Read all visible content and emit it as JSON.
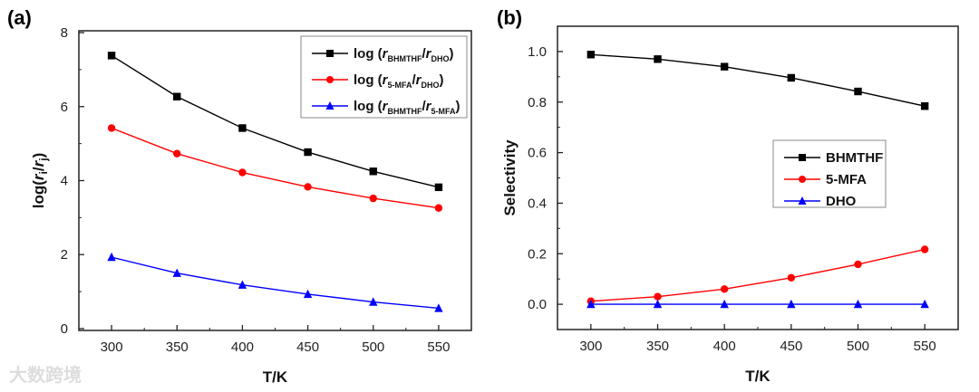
{
  "watermark": "大数跨境",
  "chart_data": [
    {
      "panel_label": "(a)",
      "type": "line",
      "xlabel": "T/K",
      "ylabel": "log(r_i/r_j)",
      "xlim": [
        275,
        575
      ],
      "ylim": [
        -0.05,
        8.05
      ],
      "xticks": [
        300,
        350,
        400,
        450,
        500,
        550
      ],
      "yticks": [
        0,
        2,
        4,
        6,
        8
      ],
      "x": [
        300,
        350,
        400,
        450,
        500,
        550
      ],
      "legend_position": "top-right",
      "series": [
        {
          "name": "log (rBHMTHF/rDHO)",
          "label_main": "log (",
          "r1": "r",
          "s1": "BHMTHF",
          "r2": "r",
          "s2": "DHO",
          "color": "#000000",
          "marker": "square",
          "values": [
            7.38,
            6.27,
            5.42,
            4.77,
            4.25,
            3.82
          ]
        },
        {
          "name": "log (r5-MFA/rDHO)",
          "label_main": "log (",
          "r1": "r",
          "s1": "5-MFA",
          "r2": "r",
          "s2": "DHO",
          "color": "#ff0000",
          "marker": "circle",
          "values": [
            5.42,
            4.73,
            4.22,
            3.83,
            3.52,
            3.26
          ]
        },
        {
          "name": "log (rBHMTHF/r5-MFA)",
          "label_main": "log (",
          "r1": "r",
          "s1": "BHMTHF",
          "r2": "r",
          "s2": "5-MFA",
          "color": "#0000ff",
          "marker": "triangle",
          "values": [
            1.93,
            1.5,
            1.18,
            0.93,
            0.72,
            0.55
          ]
        }
      ]
    },
    {
      "panel_label": "(b)",
      "type": "line",
      "xlabel": "T/K",
      "ylabel": "Selectivity",
      "xlim": [
        275,
        575
      ],
      "ylim": [
        -0.1,
        1.1
      ],
      "xticks": [
        300,
        350,
        400,
        450,
        500,
        550
      ],
      "yticks": [
        0.0,
        0.2,
        0.4,
        0.6,
        0.8,
        1.0
      ],
      "x": [
        300,
        350,
        400,
        450,
        500,
        550
      ],
      "legend_position": "center-right",
      "series": [
        {
          "name": "BHMTHF",
          "color": "#000000",
          "marker": "square",
          "values": [
            0.988,
            0.97,
            0.94,
            0.896,
            0.842,
            0.784
          ]
        },
        {
          "name": "5-MFA",
          "color": "#ff0000",
          "marker": "circle",
          "values": [
            0.012,
            0.03,
            0.06,
            0.105,
            0.158,
            0.217
          ]
        },
        {
          "name": "DHO",
          "color": "#0000ff",
          "marker": "triangle",
          "values": [
            0.0,
            0.0,
            0.0,
            0.0,
            0.0,
            0.0
          ]
        }
      ]
    }
  ]
}
